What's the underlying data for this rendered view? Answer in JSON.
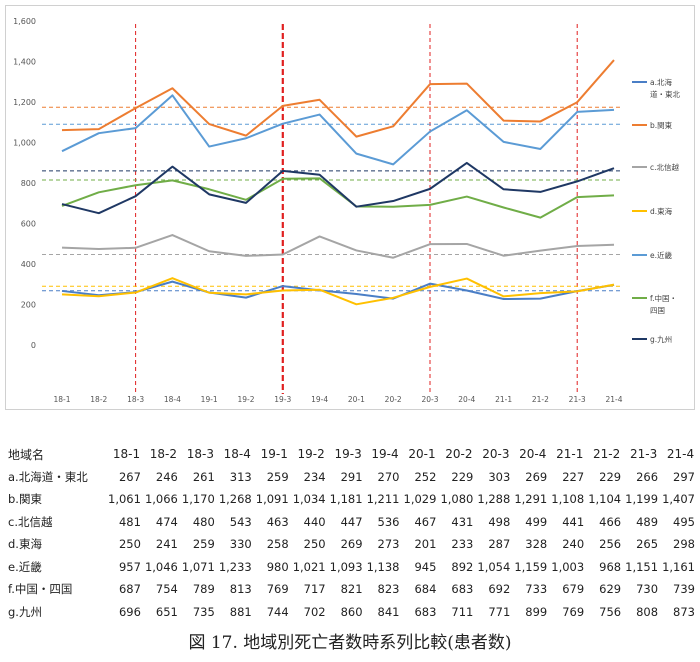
{
  "chart_data": {
    "type": "line",
    "categories": [
      "18-1",
      "18-2",
      "18-3",
      "18-4",
      "19-1",
      "19-2",
      "19-3",
      "19-4",
      "20-1",
      "20-2",
      "20-3",
      "20-4",
      "21-1",
      "21-2",
      "21-3",
      "21-4"
    ],
    "ylim": [
      0,
      1600
    ],
    "yticks": [
      "0",
      "200",
      "400",
      "600",
      "800",
      "1,000",
      "1,200",
      "1,400",
      "1,600"
    ],
    "grid": false,
    "legend_position": "right",
    "series": [
      {
        "name": "a.北海道・東北",
        "legend_lines": [
          "a.北海",
          "道・東北"
        ],
        "color": "#4a7ec6",
        "values": [
          267,
          246,
          261,
          313,
          259,
          234,
          291,
          270,
          252,
          229,
          303,
          269,
          227,
          229,
          266,
          297
        ],
        "avg": 268
      },
      {
        "name": "b.関東",
        "legend_lines": [
          "b.関東"
        ],
        "color": "#ed7d31",
        "values": [
          1061,
          1066,
          1170,
          1268,
          1091,
          1034,
          1181,
          1211,
          1029,
          1080,
          1288,
          1291,
          1108,
          1104,
          1199,
          1407
        ],
        "avg": 1174
      },
      {
        "name": "c.北信越",
        "legend_lines": [
          "c.北信越"
        ],
        "color": "#a5a5a5",
        "values": [
          481,
          474,
          480,
          543,
          463,
          440,
          447,
          536,
          467,
          431,
          498,
          499,
          441,
          466,
          489,
          495
        ],
        "avg": 447
      },
      {
        "name": "d.東海",
        "legend_lines": [
          "d.東海"
        ],
        "color": "#ffc000",
        "values": [
          250,
          241,
          259,
          330,
          258,
          250,
          269,
          273,
          201,
          233,
          287,
          328,
          240,
          256,
          265,
          298
        ],
        "avg": 290
      },
      {
        "name": "e.近畿",
        "legend_lines": [
          "e.近畿"
        ],
        "color": "#5b9bd5",
        "values": [
          957,
          1046,
          1071,
          1233,
          980,
          1021,
          1093,
          1138,
          945,
          892,
          1054,
          1159,
          1003,
          968,
          1151,
          1161
        ],
        "avg": 1090
      },
      {
        "name": "f.中国・四国",
        "legend_lines": [
          "f.中国・",
          "四国"
        ],
        "color": "#70ad47",
        "values": [
          687,
          754,
          789,
          813,
          769,
          717,
          821,
          823,
          684,
          683,
          692,
          733,
          679,
          629,
          730,
          739
        ],
        "avg": 815
      },
      {
        "name": "g.九州",
        "legend_lines": [
          "g.九州"
        ],
        "color": "#1f3864",
        "values": [
          696,
          651,
          735,
          881,
          744,
          702,
          860,
          841,
          683,
          711,
          771,
          899,
          769,
          756,
          808,
          873
        ],
        "avg": 860
      }
    ],
    "vertical_markers": [
      {
        "category": "18-3",
        "style": "thin"
      },
      {
        "category": "19-3",
        "style": "bold"
      },
      {
        "category": "20-3",
        "style": "thin"
      },
      {
        "category": "21-3",
        "style": "thin"
      }
    ],
    "marker_color": "#e02020"
  },
  "table": {
    "corner_label": "地域名"
  },
  "caption": "図 17.  地域別死亡者数時系列比較(患者数)"
}
